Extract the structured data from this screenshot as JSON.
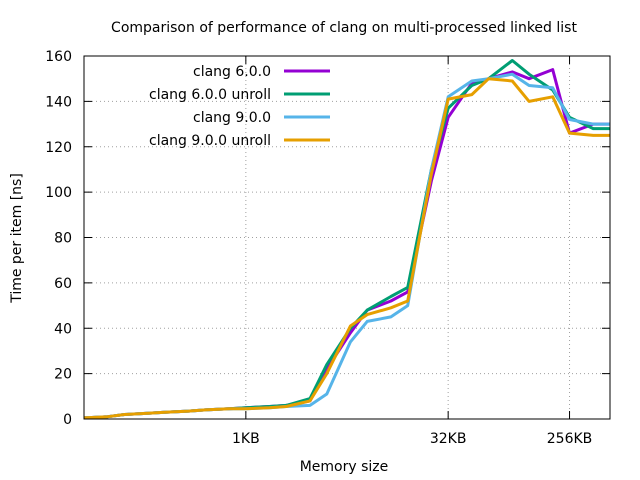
{
  "chart_data": {
    "type": "line",
    "title": "Comparison of performance of clang on multi-processed linked list",
    "xlabel": "Memory size",
    "ylabel": "Time per item [ns]",
    "ylim": [
      0,
      160
    ],
    "yticks": [
      "0",
      "20",
      "40",
      "60",
      "80",
      "100",
      "120",
      "140",
      "160"
    ],
    "x_scale": "log2",
    "x_unit": "KB",
    "xlim_kb": [
      0.0625,
      512
    ],
    "xticks": [
      {
        "label": "1KB",
        "value_kb": 1
      },
      {
        "label": "32KB",
        "value_kb": 32
      },
      {
        "label": "256KB",
        "value_kb": 256
      }
    ],
    "grid": true,
    "legend_position": "top-left",
    "x_kb": [
      0.0625,
      0.09375,
      0.125,
      0.1875,
      0.25,
      0.375,
      0.5,
      0.75,
      1,
      1.5,
      2,
      3,
      4,
      6,
      8,
      12,
      16,
      24,
      32,
      48,
      64,
      96,
      128,
      192,
      256,
      384,
      512
    ],
    "series": [
      {
        "name": "clang 6.0.0",
        "color": "#9400d3",
        "values": [
          0.5,
          1,
          2,
          2.5,
          3,
          3.5,
          4,
          4.5,
          5,
          5.5,
          6,
          8,
          22,
          38,
          48,
          52,
          56,
          105,
          133,
          148,
          150,
          153,
          150,
          154,
          126,
          130,
          130
        ]
      },
      {
        "name": "clang 6.0.0 unroll",
        "color": "#009e73",
        "values": [
          0.5,
          1,
          2,
          2.5,
          3,
          3.5,
          4,
          4.5,
          5,
          5.5,
          6,
          9,
          24,
          40,
          48,
          54,
          58,
          110,
          137,
          147,
          150,
          158,
          152,
          145,
          133,
          128,
          128
        ]
      },
      {
        "name": "clang 9.0.0",
        "color": "#56b4e9",
        "values": [
          0.5,
          1,
          2,
          2.5,
          3,
          3.5,
          4,
          4.5,
          4.5,
          5,
          5.5,
          6,
          11,
          34,
          43,
          45,
          50,
          110,
          142,
          149,
          150,
          152,
          147,
          146,
          132,
          130,
          130
        ]
      },
      {
        "name": "clang 9.0.0 unroll",
        "color": "#e69f00",
        "values": [
          0.5,
          1,
          2,
          2.5,
          3,
          3.5,
          4,
          4.5,
          4.5,
          5,
          5.5,
          8,
          20,
          41,
          46,
          49,
          52,
          108,
          141,
          143,
          150,
          149,
          140,
          142,
          126,
          125,
          125
        ]
      }
    ]
  }
}
